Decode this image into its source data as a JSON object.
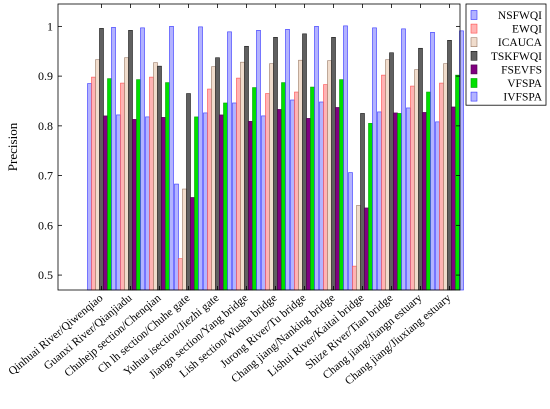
{
  "chart_data": {
    "type": "bar",
    "title": "",
    "xlabel": "",
    "ylabel": "Precision",
    "ylim": [
      0.47,
      1.045
    ],
    "yticks": [
      0.5,
      0.6,
      0.7,
      0.8,
      0.9,
      1
    ],
    "ytick_labels": [
      "0.5",
      "0.6",
      "0.7",
      "0.8",
      "0.9",
      "1"
    ],
    "grid": false,
    "legend_position": "outside-right-top",
    "categories": [
      "Qinhuai River/Qiwenqiao",
      "Guanxi River/Qianjiadu",
      "Chuhejp section/Chenqian",
      "Ch lh section/Chuhe gate",
      "Yuhua isection/Jiezhi gate",
      "Jiangn section/Yang bridge",
      "Lish section/Wusha bridge",
      "Jurong River/Tu bridge",
      "Chang jiang/Nanking bridge",
      "Lishui River/Kaitai bridge",
      "Shize River/Tian bridge",
      "Chang jiang/Jiangn estuary",
      "Chang jiang/Jiuxiang estuary"
    ],
    "series": [
      {
        "name": "NSFWQI",
        "fill": "#b3b3ff",
        "stroke": "#3333ff",
        "values": [
          0.885,
          0.822,
          0.818,
          0.683,
          0.826,
          0.846,
          0.82,
          0.852,
          0.848,
          0.706,
          0.828,
          0.836,
          0.808
        ]
      },
      {
        "name": "EWQI",
        "fill": "#ffb3b3",
        "stroke": "#ff4d4d",
        "values": [
          0.898,
          0.886,
          0.898,
          0.533,
          0.874,
          0.896,
          0.865,
          0.868,
          0.883,
          0.518,
          0.902,
          0.88,
          0.886
        ]
      },
      {
        "name": "ICAUCA",
        "fill": "#f0dccc",
        "stroke": "#9a7a66",
        "values": [
          0.933,
          0.937,
          0.927,
          0.673,
          0.919,
          0.928,
          0.925,
          0.932,
          0.931,
          0.64,
          0.933,
          0.913,
          0.925
        ]
      },
      {
        "name": "TSKFWQI",
        "fill": "#606060",
        "stroke": "#1a1a1a",
        "values": [
          0.996,
          0.992,
          0.92,
          0.865,
          0.937,
          0.96,
          0.978,
          0.985,
          0.978,
          0.825,
          0.947,
          0.956,
          0.972
        ]
      },
      {
        "name": "FSEVFS",
        "fill": "#800080",
        "stroke": "#4d004d",
        "values": [
          0.82,
          0.813,
          0.817,
          0.656,
          0.822,
          0.809,
          0.833,
          0.815,
          0.837,
          0.635,
          0.826,
          0.827,
          0.838
        ]
      },
      {
        "name": "VFSPA",
        "fill": "#00e000",
        "stroke": "#00a000",
        "values": [
          0.895,
          0.893,
          0.887,
          0.818,
          0.846,
          0.877,
          0.887,
          0.878,
          0.893,
          0.805,
          0.825,
          0.868,
          0.902
        ]
      },
      {
        "name": "IVFSPA",
        "fill": "#b3b3ff",
        "stroke": "#3333ff",
        "values": [
          0.998,
          0.997,
          1.0,
          0.999,
          0.989,
          0.992,
          0.994,
          1.0,
          1.001,
          0.997,
          0.995,
          0.988,
          0.991
        ]
      }
    ]
  }
}
